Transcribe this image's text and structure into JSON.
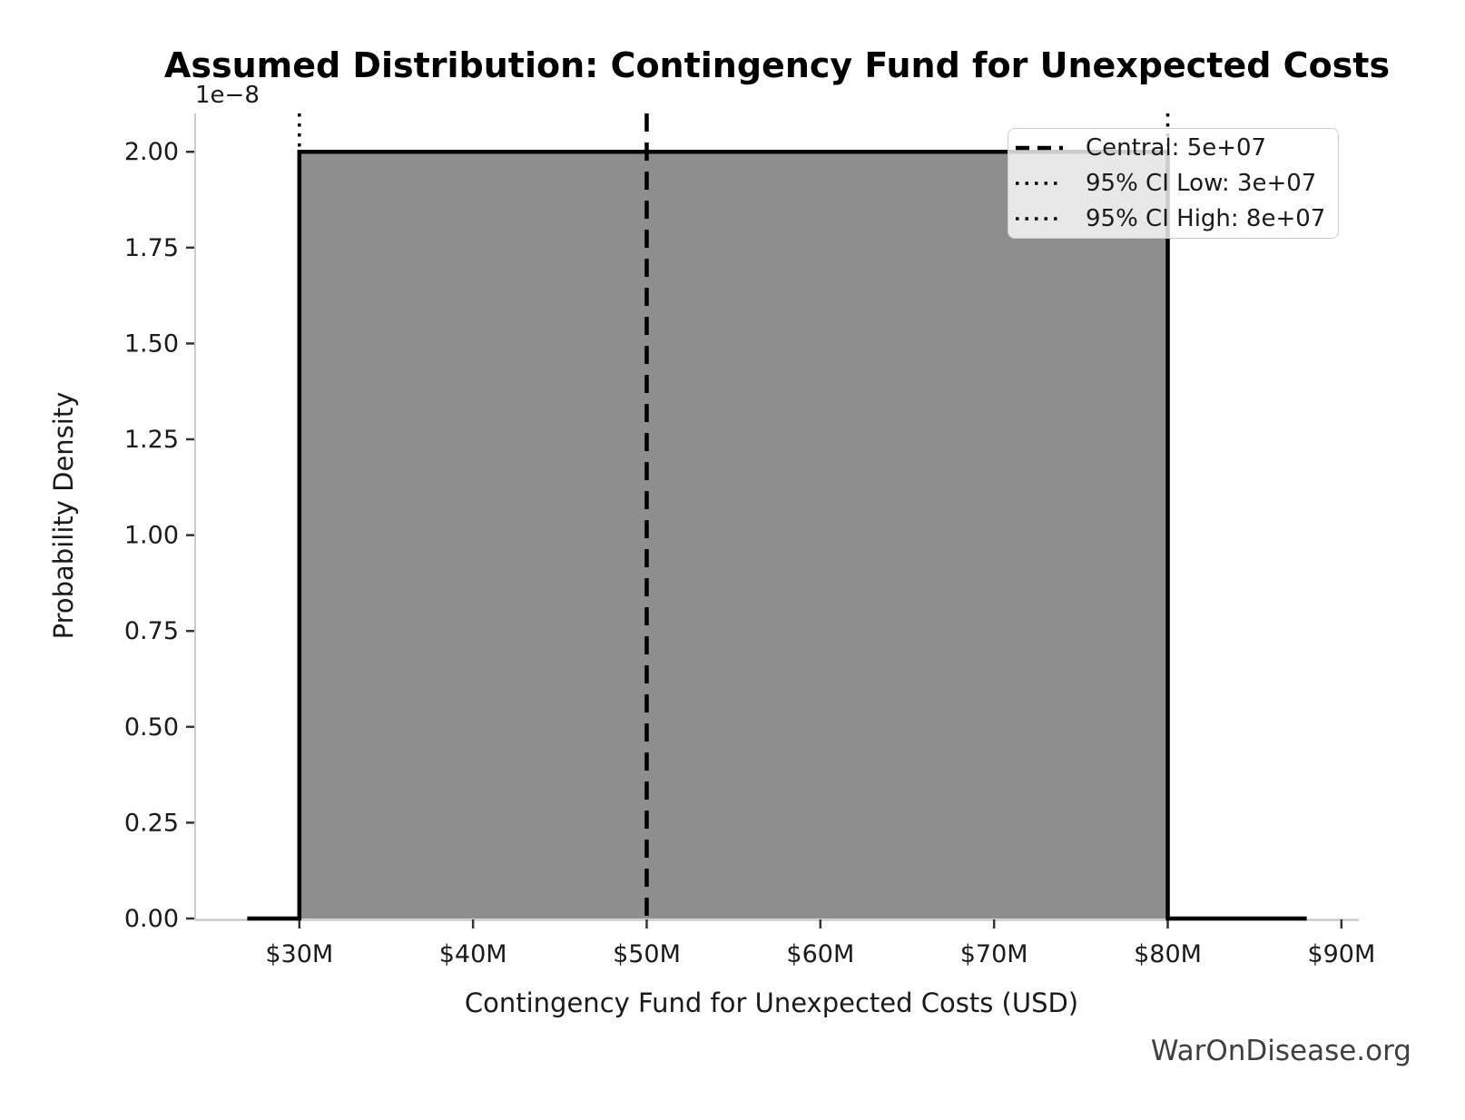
{
  "chart_data": {
    "type": "area",
    "title": "Assumed Distribution: Contingency Fund for Unexpected Costs",
    "xlabel": "Contingency Fund for Unexpected Costs (USD)",
    "ylabel": "Probability Density",
    "y_axis_offset_label": "1e−8",
    "xlim_musd": [
      24,
      91
    ],
    "ylim_1e8": [
      0,
      2.1
    ],
    "grid": "off",
    "legend_position": "upper right",
    "x_ticks": [
      {
        "v": 30,
        "label": "$30M"
      },
      {
        "v": 40,
        "label": "$40M"
      },
      {
        "v": 50,
        "label": "$50M"
      },
      {
        "v": 60,
        "label": "$60M"
      },
      {
        "v": 70,
        "label": "$70M"
      },
      {
        "v": 80,
        "label": "$80M"
      },
      {
        "v": 90,
        "label": "$90M"
      }
    ],
    "y_ticks": [
      {
        "v": 0.0,
        "label": "0.00"
      },
      {
        "v": 0.25,
        "label": "0.25"
      },
      {
        "v": 0.5,
        "label": "0.50"
      },
      {
        "v": 0.75,
        "label": "0.75"
      },
      {
        "v": 1.0,
        "label": "1.00"
      },
      {
        "v": 1.25,
        "label": "1.25"
      },
      {
        "v": 1.5,
        "label": "1.50"
      },
      {
        "v": 1.75,
        "label": "1.75"
      },
      {
        "v": 2.0,
        "label": "2.00"
      }
    ],
    "distribution": {
      "shape": "uniform",
      "support_musd": [
        30,
        80
      ],
      "density_1e8": 2.0,
      "curve_musd": [
        [
          27,
          0
        ],
        [
          30,
          0
        ],
        [
          30,
          2.0
        ],
        [
          80,
          2.0
        ],
        [
          80,
          0
        ],
        [
          88,
          0
        ]
      ]
    },
    "vlines": [
      {
        "x_musd": 50,
        "style": "dashed",
        "label": "Central: 5e+07"
      },
      {
        "x_musd": 30,
        "style": "dotted",
        "label": "95% CI Low: 3e+07"
      },
      {
        "x_musd": 80,
        "style": "dotted",
        "label": "95% CI High: 8e+07"
      }
    ],
    "colors": {
      "fill": "#8e8e8e",
      "line": "#000000",
      "spine": "#cccccc",
      "tick": "#333333",
      "text": "#1a1a1a",
      "watermark": "#3f3f3f"
    }
  },
  "watermark": "WarOnDisease.org"
}
